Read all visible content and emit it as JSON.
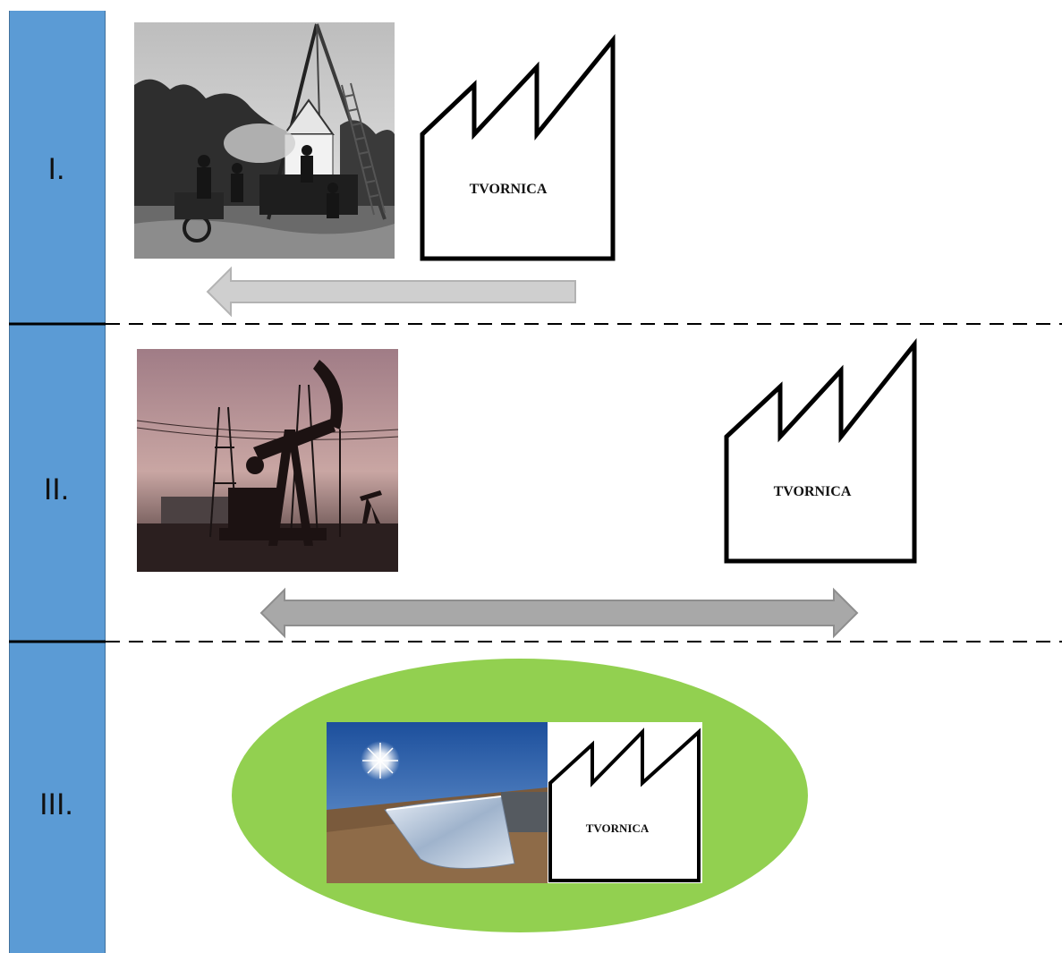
{
  "stages": [
    {
      "label": "I."
    },
    {
      "label": "II."
    },
    {
      "label": "III."
    }
  ],
  "factory_label": "TVORNICA",
  "colors": {
    "sidebar": "#5b9bd5",
    "arrow_light": "#c9c9c9",
    "arrow_dark": "#a3a3a3",
    "ellipse": "#92d050",
    "divider": "#000000"
  },
  "icons": {
    "factory": "factory-icon",
    "drilling_rig": "drilling-rig-photo",
    "oil_pump": "oil-pumpjack-photo",
    "solar": "solar-collector-photo"
  }
}
